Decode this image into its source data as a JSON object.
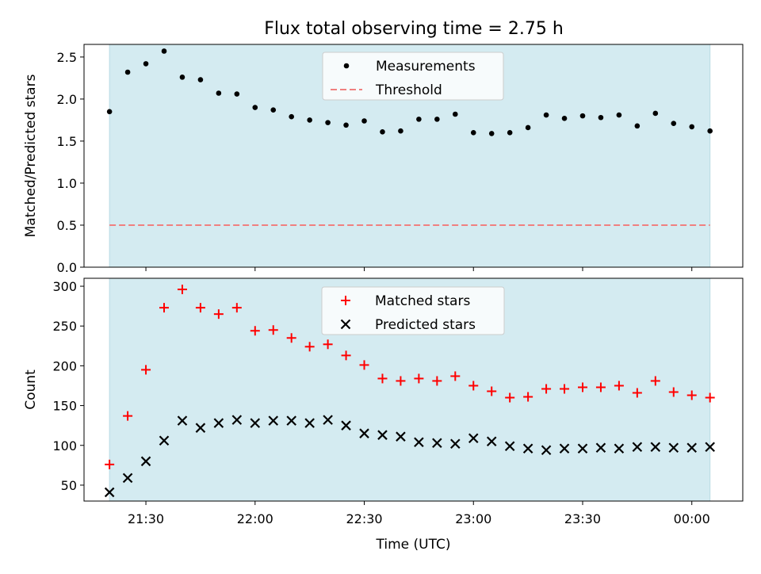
{
  "title": "Flux total observing time = 2.75 h",
  "chart_data": [
    {
      "type": "scatter",
      "ylabel": "Matched/Predicted stars",
      "ylim": [
        0,
        2.65
      ],
      "yticks": [
        "0.0",
        "0.5",
        "1.0",
        "1.5",
        "2.0",
        "2.5"
      ],
      "xlim": [
        "21:13",
        "00:14"
      ],
      "shaded_span": [
        "21:20",
        "00:05"
      ],
      "shade_color": "#d4ebf1",
      "legend_placement": "top-center",
      "series": [
        {
          "name": "Measurements",
          "marker": "dot",
          "color": "#000000",
          "x": [
            "21:20",
            "21:25",
            "21:30",
            "21:35",
            "21:40",
            "21:45",
            "21:50",
            "21:55",
            "22:00",
            "22:05",
            "22:10",
            "22:15",
            "22:20",
            "22:25",
            "22:30",
            "22:35",
            "22:40",
            "22:45",
            "22:50",
            "22:55",
            "23:00",
            "23:05",
            "23:10",
            "23:15",
            "23:20",
            "23:25",
            "23:30",
            "23:35",
            "23:40",
            "23:45",
            "23:50",
            "23:55",
            "00:00",
            "00:05"
          ],
          "y": [
            1.85,
            2.32,
            2.42,
            2.57,
            2.26,
            2.23,
            2.07,
            2.06,
            1.9,
            1.87,
            1.79,
            1.75,
            1.72,
            1.69,
            1.74,
            1.61,
            1.62,
            1.76,
            1.76,
            1.82,
            1.6,
            1.59,
            1.6,
            1.66,
            1.81,
            1.77,
            1.8,
            1.78,
            1.81,
            1.68,
            1.83,
            1.71,
            1.67,
            1.62
          ]
        },
        {
          "name": "Threshold",
          "type": "hline",
          "style": "dashed",
          "color": "#f08080",
          "y": 0.5
        }
      ]
    },
    {
      "type": "scatter",
      "xlabel": "Time (UTC)",
      "ylabel": "Count",
      "ylim": [
        30,
        310
      ],
      "yticks": [
        "50",
        "100",
        "150",
        "200",
        "250",
        "300"
      ],
      "xticks": [
        "21:30",
        "22:00",
        "22:30",
        "23:00",
        "23:30",
        "00:00"
      ],
      "xlim": [
        "21:13",
        "00:14"
      ],
      "shaded_span": [
        "21:20",
        "00:05"
      ],
      "shade_color": "#d4ebf1",
      "legend_placement": "top-center",
      "series": [
        {
          "name": "Matched stars",
          "marker": "plus",
          "color": "#ff0000",
          "x": [
            "21:20",
            "21:25",
            "21:30",
            "21:35",
            "21:40",
            "21:45",
            "21:50",
            "21:55",
            "22:00",
            "22:05",
            "22:10",
            "22:15",
            "22:20",
            "22:25",
            "22:30",
            "22:35",
            "22:40",
            "22:45",
            "22:50",
            "22:55",
            "23:00",
            "23:05",
            "23:10",
            "23:15",
            "23:20",
            "23:25",
            "23:30",
            "23:35",
            "23:40",
            "23:45",
            "23:50",
            "23:55",
            "00:00",
            "00:05"
          ],
          "y": [
            76,
            137,
            195,
            273,
            296,
            273,
            265,
            273,
            244,
            245,
            235,
            224,
            227,
            213,
            201,
            184,
            181,
            184,
            181,
            187,
            175,
            168,
            160,
            161,
            171,
            171,
            173,
            173,
            175,
            166,
            181,
            167,
            163,
            160
          ]
        },
        {
          "name": "Predicted stars",
          "marker": "x",
          "color": "#000000",
          "x": [
            "21:20",
            "21:25",
            "21:30",
            "21:35",
            "21:40",
            "21:45",
            "21:50",
            "21:55",
            "22:00",
            "22:05",
            "22:10",
            "22:15",
            "22:20",
            "22:25",
            "22:30",
            "22:35",
            "22:40",
            "22:45",
            "22:50",
            "22:55",
            "23:00",
            "23:05",
            "23:10",
            "23:15",
            "23:20",
            "23:25",
            "23:30",
            "23:35",
            "23:40",
            "23:45",
            "23:50",
            "23:55",
            "00:00",
            "00:05"
          ],
          "y": [
            41,
            59,
            80,
            106,
            131,
            122,
            128,
            132,
            128,
            131,
            131,
            128,
            132,
            125,
            115,
            113,
            111,
            104,
            103,
            102,
            109,
            105,
            99,
            96,
            94,
            96,
            96,
            97,
            96,
            98,
            98,
            97,
            97,
            98
          ]
        }
      ]
    }
  ]
}
